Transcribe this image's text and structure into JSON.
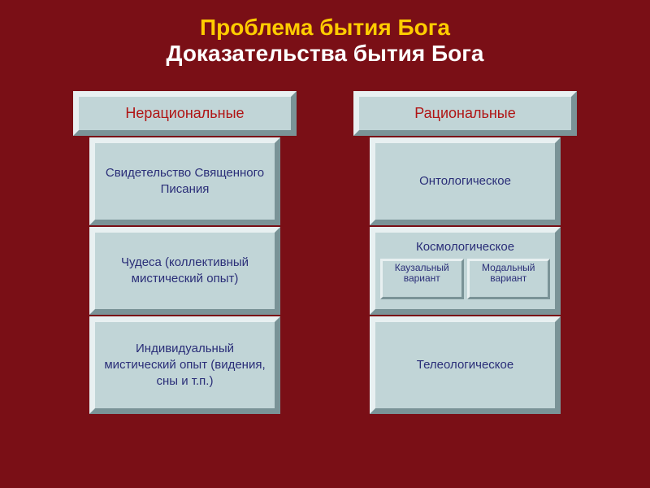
{
  "colors": {
    "background": "#7a0f16",
    "title_accent": "#ffcc00",
    "title_white": "#ffffff",
    "box_fill": "#c1d5d7",
    "box_border_light": "#e8f0f1",
    "box_border_dark": "#7a9397",
    "text_header_red": "#b01515",
    "text_body_blue": "#2a2e78"
  },
  "title": {
    "line1": "Проблема бытия Бога",
    "line2": "Доказательства бытия Бога"
  },
  "left": {
    "header": "Нерациональные",
    "items": [
      "Свидетельство Священного Писания",
      "Чудеса (коллективный мистический опыт)",
      "Индивидуальный мистический опыт (видения, сны и т.п.)"
    ]
  },
  "right": {
    "header": "Рациональные",
    "items": {
      "ontological": "Онтологическое",
      "cosmological": {
        "title": "Космологическое",
        "sub": [
          "Каузальный вариант",
          "Модальный вариант"
        ]
      },
      "teleological": "Телеологическое"
    }
  },
  "typography": {
    "title_fontsize": 28,
    "header_fontsize": 18,
    "item_fontsize": 15,
    "sub_fontsize": 12
  }
}
